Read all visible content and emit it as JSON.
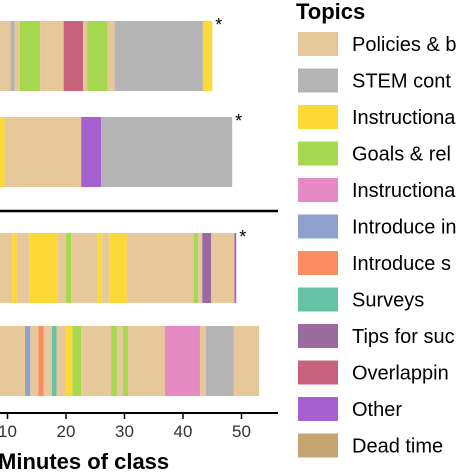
{
  "chart_data": {
    "type": "bar",
    "orientation": "horizontal-stacked",
    "xlabel": "Minutes of class",
    "xticks": [
      10,
      20,
      30,
      40,
      50
    ],
    "legend": {
      "title": "Topics",
      "placement": "right",
      "items": [
        {
          "label": "Policies & b",
          "color": "#e6c89a"
        },
        {
          "label": "STEM cont",
          "color": "#b4b4b4"
        },
        {
          "label": "Instructiona",
          "color": "#fdd935"
        },
        {
          "label": "Goals & rel",
          "color": "#a6d94f"
        },
        {
          "label": "Instructiona",
          "color": "#e68ac4"
        },
        {
          "label": "Introduce in",
          "color": "#8ea0cb"
        },
        {
          "label": "Introduce s",
          "color": "#fc8d62"
        },
        {
          "label": "Surveys",
          "color": "#66c2a5"
        },
        {
          "label": "Tips for suc",
          "color": "#9a6aa0"
        },
        {
          "label": "Overlappin",
          "color": "#c8617c"
        },
        {
          "label": "Other",
          "color": "#a65fcf"
        },
        {
          "label": "Dead time",
          "color": "#c4a770"
        }
      ]
    },
    "bars": [
      {
        "star": "*",
        "segments": [
          {
            "topic": 2,
            "start": 5.0,
            "end": 6.7
          },
          {
            "topic": 0,
            "start": 6.7,
            "end": 7.4
          },
          {
            "topic": 2,
            "start": 7.4,
            "end": 8.0
          },
          {
            "topic": 0,
            "start": 8.0,
            "end": 10.5
          },
          {
            "topic": 1,
            "start": 10.5,
            "end": 11.2
          },
          {
            "topic": 0,
            "start": 11.2,
            "end": 12.1
          },
          {
            "topic": 3,
            "start": 12.1,
            "end": 15.6
          },
          {
            "topic": 0,
            "start": 15.6,
            "end": 19.6
          },
          {
            "topic": 9,
            "start": 19.6,
            "end": 22.9
          },
          {
            "topic": 0,
            "start": 22.9,
            "end": 23.6
          },
          {
            "topic": 3,
            "start": 23.6,
            "end": 27.1
          },
          {
            "topic": 0,
            "start": 27.1,
            "end": 28.3
          },
          {
            "topic": 1,
            "start": 28.3,
            "end": 43.4
          },
          {
            "topic": 2,
            "start": 43.4,
            "end": 45.0
          }
        ]
      },
      {
        "star": "*",
        "segments": [
          {
            "topic": 0,
            "start": 5.0,
            "end": 7.9
          },
          {
            "topic": 2,
            "start": 7.9,
            "end": 9.5
          },
          {
            "topic": 0,
            "start": 9.5,
            "end": 22.6
          },
          {
            "topic": 10,
            "start": 22.6,
            "end": 26.0
          },
          {
            "topic": 1,
            "start": 26.0,
            "end": 48.4
          }
        ]
      },
      {
        "star": "*",
        "segments": [
          {
            "topic": 0,
            "start": 5.0,
            "end": 10.8
          },
          {
            "topic": 2,
            "start": 10.8,
            "end": 11.6
          },
          {
            "topic": 0,
            "start": 11.6,
            "end": 13.7
          },
          {
            "topic": 2,
            "start": 13.7,
            "end": 18.5
          },
          {
            "topic": 0,
            "start": 18.5,
            "end": 20.0
          },
          {
            "topic": 3,
            "start": 20.0,
            "end": 20.9
          },
          {
            "topic": 0,
            "start": 20.9,
            "end": 25.3
          },
          {
            "topic": 2,
            "start": 25.3,
            "end": 26.2
          },
          {
            "topic": 0,
            "start": 26.2,
            "end": 27.4
          },
          {
            "topic": 2,
            "start": 27.4,
            "end": 30.4
          },
          {
            "topic": 0,
            "start": 30.4,
            "end": 41.8
          },
          {
            "topic": 3,
            "start": 41.8,
            "end": 42.6
          },
          {
            "topic": 0,
            "start": 42.6,
            "end": 43.3
          },
          {
            "topic": 8,
            "start": 43.3,
            "end": 44.8
          },
          {
            "topic": 0,
            "start": 44.8,
            "end": 48.8
          },
          {
            "topic": 10,
            "start": 48.8,
            "end": 49.1
          }
        ]
      },
      {
        "star": "",
        "segments": [
          {
            "topic": 0,
            "start": 5.0,
            "end": 7.1
          },
          {
            "topic": 10,
            "start": 7.1,
            "end": 7.7
          },
          {
            "topic": 0,
            "start": 7.7,
            "end": 13.0
          },
          {
            "topic": 5,
            "start": 13.0,
            "end": 13.9
          },
          {
            "topic": 0,
            "start": 13.9,
            "end": 15.3
          },
          {
            "topic": 6,
            "start": 15.3,
            "end": 16.2
          },
          {
            "topic": 0,
            "start": 16.2,
            "end": 17.6
          },
          {
            "topic": 7,
            "start": 17.6,
            "end": 18.4
          },
          {
            "topic": 0,
            "start": 18.4,
            "end": 19.9
          },
          {
            "topic": 2,
            "start": 19.9,
            "end": 21.1
          },
          {
            "topic": 3,
            "start": 21.1,
            "end": 22.6
          },
          {
            "topic": 0,
            "start": 22.6,
            "end": 27.7
          },
          {
            "topic": 3,
            "start": 27.7,
            "end": 28.7
          },
          {
            "topic": 0,
            "start": 28.7,
            "end": 29.7
          },
          {
            "topic": 3,
            "start": 29.7,
            "end": 30.6
          },
          {
            "topic": 0,
            "start": 30.6,
            "end": 36.9
          },
          {
            "topic": 4,
            "start": 36.9,
            "end": 42.9
          },
          {
            "topic": 0,
            "start": 42.9,
            "end": 43.9
          },
          {
            "topic": 1,
            "start": 43.9,
            "end": 48.7
          },
          {
            "topic": 0,
            "start": 48.7,
            "end": 53.0
          }
        ]
      }
    ]
  }
}
